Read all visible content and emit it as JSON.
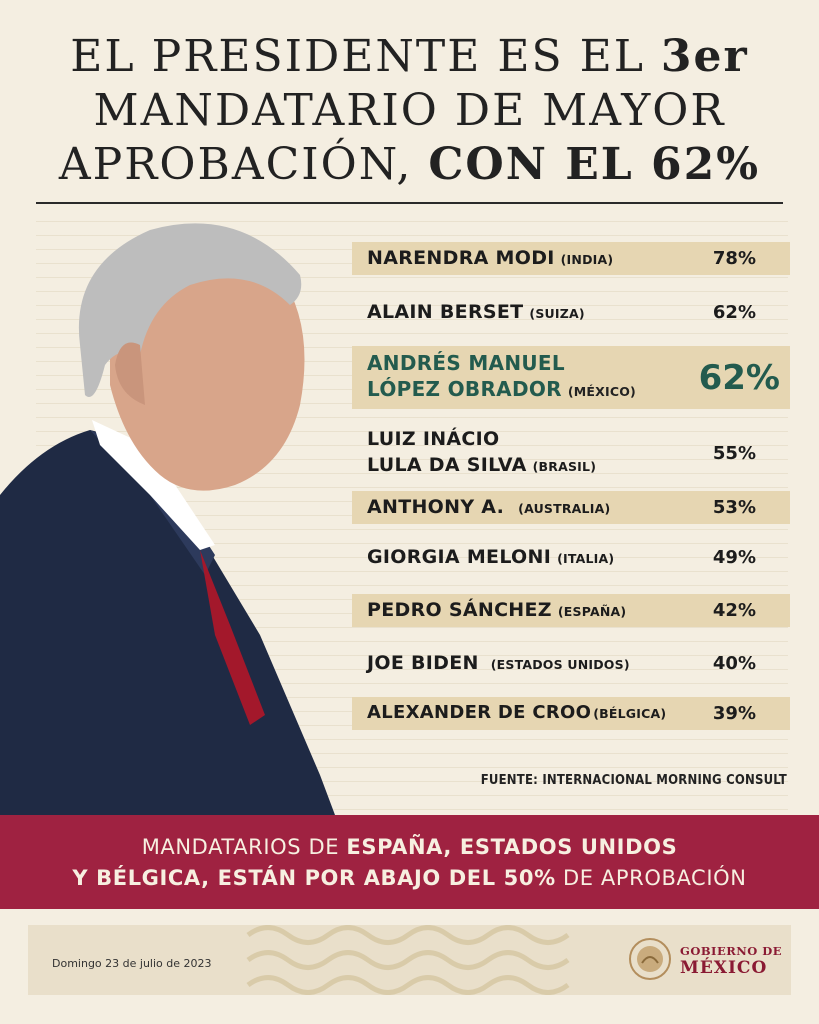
{
  "headline": {
    "line1_regular": "EL PRESIDENTE ES EL ",
    "line1_bold": "3er",
    "line2": "MANDATARIO DE MAYOR",
    "line3_regular": "APROBACIÓN, ",
    "line3_bold": "CON EL 62%"
  },
  "ranking": [
    {
      "name_line1": "NARENDRA MODI",
      "name_line2": "",
      "country": "(INDIA)",
      "percent": "78%"
    },
    {
      "name_line1": "ALAIN BERSET",
      "name_line2": "",
      "country": "(SUIZA)",
      "percent": "62%"
    },
    {
      "name_line1": "ANDRÉS MANUEL",
      "name_line2": "LÓPEZ OBRADOR",
      "country": "(MÉXICO)",
      "percent": "62%"
    },
    {
      "name_line1": "LUIZ INÁCIO",
      "name_line2": "LULA DA SILVA",
      "country": "(BRASIL)",
      "percent": "55%"
    },
    {
      "name_line1": "ANTHONY A.",
      "name_line2": "",
      "country": "(AUSTRALIA)",
      "percent": "53%"
    },
    {
      "name_line1": "GIORGIA MELONI",
      "name_line2": "",
      "country": "(ITALIA)",
      "percent": "49%"
    },
    {
      "name_line1": "PEDRO SÁNCHEZ",
      "name_line2": "",
      "country": "(ESPAÑA)",
      "percent": "42%"
    },
    {
      "name_line1": "JOE BIDEN",
      "name_line2": "",
      "country": "(ESTADOS UNIDOS)",
      "percent": "40%"
    },
    {
      "name_line1": "ALEXANDER DE CROO",
      "name_line2": "",
      "country": "(BÉLGICA)",
      "percent": "39%"
    }
  ],
  "source": {
    "label": "FUENTE: ",
    "value": "INTERNACIONAL MORNING CONSULT"
  },
  "banner": {
    "l1_a": "MANDATARIOS DE ",
    "l1_b": "ESPAÑA, ESTADOS UNIDOS",
    "l2_a": "Y BÉLGICA, ESTÁN POR ABAJO DEL 50%",
    "l2_b": " DE APROBACIÓN"
  },
  "footer": {
    "date": "Domingo 23 de julio de 2023",
    "logo_line1": "GOBIERNO DE",
    "logo_line2": "MÉXICO"
  },
  "colors": {
    "background": "#f4eee1",
    "band": "#e6d6b2",
    "highlight_green": "#235b4e",
    "banner_red": "#9f2241"
  }
}
